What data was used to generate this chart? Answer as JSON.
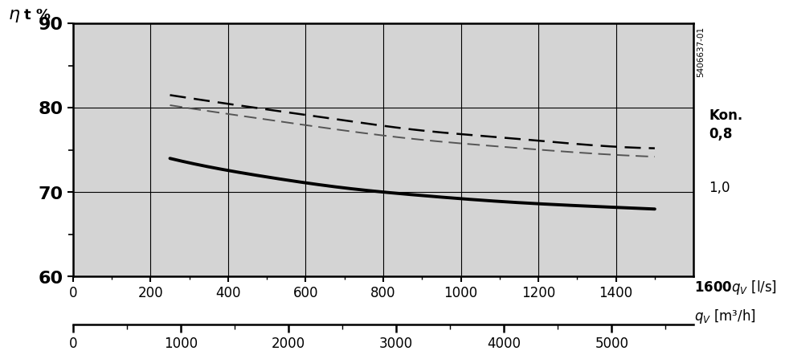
{
  "ylim": [
    60,
    90
  ],
  "xlim_ls": [
    0,
    1600
  ],
  "yticks_major": [
    60,
    70,
    80,
    90
  ],
  "yticks_minor": [
    65,
    75,
    85
  ],
  "xticks_ls_major": [
    0,
    200,
    400,
    600,
    800,
    1000,
    1200,
    1400
  ],
  "xticks_ls_minor": [
    100,
    300,
    500,
    700,
    900,
    1100,
    1300,
    1500
  ],
  "xticks_m3h_major": [
    0,
    1000,
    2000,
    3000,
    4000,
    5000
  ],
  "xticks_m3h_minor": [
    500,
    1500,
    2500,
    3500,
    4500,
    5500
  ],
  "bg_color": "#d4d4d4",
  "curve_solid_x": [
    250,
    350,
    500,
    700,
    900,
    1100,
    1300,
    1500
  ],
  "curve_solid_y": [
    74.0,
    73.0,
    71.8,
    70.5,
    69.6,
    68.9,
    68.4,
    68.0
  ],
  "curve_dashed1_x": [
    250,
    350,
    500,
    700,
    900,
    1100,
    1300,
    1500
  ],
  "curve_dashed1_y": [
    81.5,
    80.8,
    79.8,
    78.5,
    77.3,
    76.5,
    75.7,
    75.2
  ],
  "curve_dashed2_x": [
    250,
    350,
    500,
    700,
    900,
    1100,
    1300,
    1500
  ],
  "curve_dashed2_y": [
    80.3,
    79.6,
    78.6,
    77.3,
    76.2,
    75.4,
    74.7,
    74.2
  ],
  "text_5406": "5406637-01",
  "text_kon": "Kon.",
  "text_08": "0,8",
  "text_10": "1,0",
  "text_qv_ls": "qᵥ [l/s]",
  "text_1600": "1600",
  "text_qv_m3h": "qᵥ [m³/h]",
  "text_eta": "η",
  "text_t_pct": "t %"
}
